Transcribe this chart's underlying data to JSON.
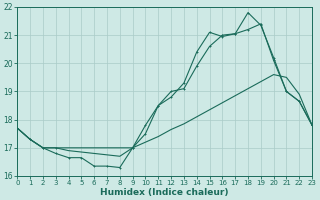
{
  "xlabel": "Humidex (Indice chaleur)",
  "background_color": "#cee9e5",
  "grid_color": "#aaccc8",
  "line_color": "#1a6b5a",
  "xlim": [
    0,
    23
  ],
  "ylim": [
    16,
    22
  ],
  "xticks": [
    0,
    1,
    2,
    3,
    4,
    5,
    6,
    7,
    8,
    9,
    10,
    11,
    12,
    13,
    14,
    15,
    16,
    17,
    18,
    19,
    20,
    21,
    22,
    23
  ],
  "yticks": [
    16,
    17,
    18,
    19,
    20,
    21,
    22
  ],
  "line1_x": [
    0,
    1,
    2,
    3,
    4,
    5,
    6,
    7,
    8,
    9,
    10,
    11,
    12,
    13,
    14,
    15,
    16,
    17,
    18,
    19,
    20,
    21,
    22,
    23
  ],
  "line1_y": [
    17.7,
    17.3,
    17.0,
    16.8,
    16.65,
    16.65,
    16.35,
    16.35,
    16.3,
    17.0,
    17.5,
    18.5,
    19.0,
    19.1,
    19.9,
    20.6,
    21.0,
    21.05,
    21.2,
    21.4,
    20.1,
    19.0,
    18.65,
    17.8
  ],
  "line2_x": [
    0,
    1,
    2,
    3,
    4,
    5,
    6,
    7,
    8,
    9,
    10,
    11,
    12,
    13,
    14,
    15,
    16,
    17,
    18,
    19,
    20,
    21,
    22,
    23
  ],
  "line2_y": [
    17.7,
    17.3,
    17.0,
    17.0,
    16.9,
    16.85,
    16.8,
    16.75,
    16.7,
    17.0,
    17.2,
    17.4,
    17.65,
    17.85,
    18.1,
    18.35,
    18.6,
    18.85,
    19.1,
    19.35,
    19.6,
    19.5,
    18.9,
    17.8
  ],
  "line3_x": [
    0,
    1,
    2,
    3,
    9,
    10,
    11,
    12,
    13,
    14,
    15,
    16,
    17,
    18,
    19,
    20,
    21,
    22,
    23
  ],
  "line3_y": [
    17.7,
    17.3,
    17.0,
    17.0,
    17.0,
    17.8,
    18.5,
    18.8,
    19.3,
    20.4,
    21.1,
    20.95,
    21.05,
    21.8,
    21.35,
    20.2,
    19.0,
    18.65,
    17.8
  ]
}
